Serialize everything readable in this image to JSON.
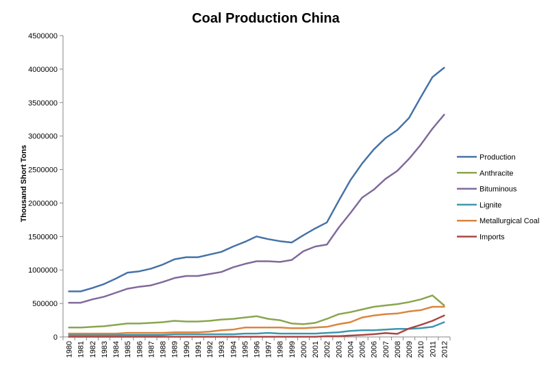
{
  "chart_data": {
    "type": "line",
    "title": "Coal Production China",
    "xlabel": "",
    "ylabel": "Thousand Short Tons",
    "ylim": [
      0,
      4500000
    ],
    "yticks": [
      "0",
      "500000",
      "1000000",
      "1500000",
      "2000000",
      "2500000",
      "3000000",
      "3500000",
      "4000000",
      "4500000"
    ],
    "grid": false,
    "legend_position": "right",
    "x": [
      "1980",
      "1981",
      "1982",
      "1983",
      "1984",
      "1985",
      "1986",
      "1987",
      "1988",
      "1989",
      "1990",
      "1991",
      "1992",
      "1993",
      "1994",
      "1995",
      "1996",
      "1997",
      "1998",
      "1999",
      "2000",
      "2001",
      "2002",
      "2003",
      "2004",
      "2005",
      "2006",
      "2007",
      "2008",
      "2009",
      "2010",
      "2011",
      "2012"
    ],
    "series": [
      {
        "name": "Production",
        "color": "#4572a7",
        "values": [
          680000,
          680000,
          730000,
          790000,
          870000,
          960000,
          980000,
          1020000,
          1080000,
          1160000,
          1190000,
          1190000,
          1230000,
          1270000,
          1350000,
          1420000,
          1500000,
          1460000,
          1430000,
          1410000,
          1520000,
          1620000,
          1710000,
          2030000,
          2340000,
          2590000,
          2800000,
          2970000,
          3090000,
          3270000,
          3580000,
          3880000,
          4020000
        ]
      },
      {
        "name": "Anthracite",
        "color": "#89a54e",
        "values": [
          140000,
          140000,
          150000,
          160000,
          180000,
          200000,
          200000,
          210000,
          220000,
          240000,
          230000,
          230000,
          240000,
          260000,
          270000,
          290000,
          310000,
          270000,
          250000,
          200000,
          190000,
          210000,
          270000,
          340000,
          370000,
          410000,
          450000,
          470000,
          490000,
          520000,
          560000,
          620000,
          470000
        ]
      },
      {
        "name": "Bituminous",
        "color": "#80699b",
        "values": [
          510000,
          510000,
          560000,
          600000,
          660000,
          720000,
          750000,
          770000,
          820000,
          880000,
          910000,
          910000,
          940000,
          970000,
          1040000,
          1090000,
          1130000,
          1130000,
          1120000,
          1150000,
          1280000,
          1350000,
          1380000,
          1630000,
          1850000,
          2080000,
          2200000,
          2360000,
          2480000,
          2660000,
          2870000,
          3110000,
          3320000
        ]
      },
      {
        "name": "Lignite",
        "color": "#3d96ae",
        "values": [
          30000,
          30000,
          30000,
          30000,
          30000,
          30000,
          30000,
          30000,
          30000,
          40000,
          40000,
          40000,
          40000,
          40000,
          40000,
          50000,
          50000,
          60000,
          50000,
          50000,
          50000,
          50000,
          60000,
          70000,
          90000,
          100000,
          100000,
          110000,
          120000,
          120000,
          130000,
          150000,
          220000
        ]
      },
      {
        "name": "Metallurgical Coal",
        "color": "#db843d",
        "values": [
          50000,
          50000,
          50000,
          50000,
          50000,
          60000,
          60000,
          60000,
          60000,
          70000,
          70000,
          70000,
          80000,
          100000,
          110000,
          140000,
          140000,
          140000,
          140000,
          130000,
          130000,
          140000,
          150000,
          190000,
          220000,
          290000,
          320000,
          340000,
          350000,
          380000,
          400000,
          450000,
          450000
        ]
      },
      {
        "name": "Imports",
        "color": "#aa4643",
        "values": [
          2000,
          2000,
          2000,
          2000,
          2000,
          2000,
          2000,
          2000,
          2000,
          2000,
          2000,
          2000,
          3000,
          3000,
          3000,
          2000,
          3000,
          2000,
          2000,
          2000,
          2000,
          2000,
          11000,
          11000,
          20000,
          30000,
          41000,
          57000,
          46000,
          126000,
          180000,
          240000,
          320000
        ]
      }
    ]
  }
}
